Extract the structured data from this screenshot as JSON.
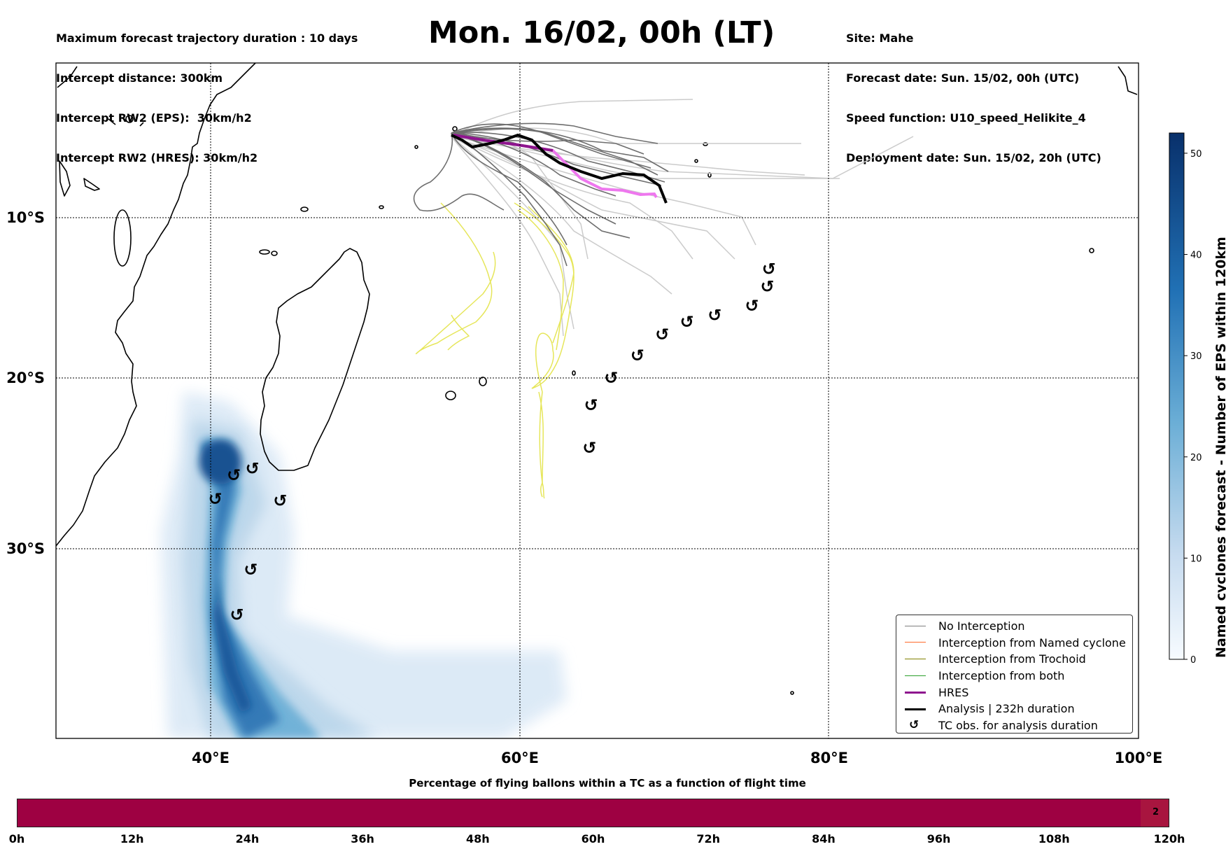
{
  "header_left": [
    "Maximum forecast trajectory duration : 10 days",
    "Intercept distance: 300km",
    "Intercept RW2 (EPS):  30km/h2",
    "Intercept RW2 (HRES): 30km/h2"
  ],
  "title": "Mon. 16/02, 00h (LT)",
  "header_right": [
    "Site: Mahe",
    "Forecast date: Sun. 15/02, 00h (UTC)",
    "Speed function: U10_speed_Helikite_4",
    "Deployment date: Sun. 15/02, 20h (UTC)"
  ],
  "map": {
    "lon_range": [
      30,
      100
    ],
    "lat_range": [
      -43.5,
      0.3
    ],
    "lon_ticks": [
      40,
      60,
      80,
      100
    ],
    "lon_labels": [
      "40°E",
      "60°E",
      "80°E",
      "100°E"
    ],
    "lat_ticks": [
      -10,
      -20,
      -30
    ],
    "lat_labels": [
      "10°S",
      "20°S",
      "30°S"
    ],
    "tc_symbol": "↺",
    "tc_observations": [
      [
        41.5,
        -25.7
      ],
      [
        42.7,
        -25.3
      ],
      [
        40.3,
        -27.1
      ],
      [
        44.5,
        -27.2
      ],
      [
        42.6,
        -31.5
      ],
      [
        41.7,
        -34.7
      ],
      [
        64.5,
        -24.1
      ],
      [
        64.6,
        -21.6
      ],
      [
        65.9,
        -20.0
      ],
      [
        67.6,
        -18.6
      ],
      [
        69.2,
        -17.3
      ],
      [
        70.8,
        -16.5
      ],
      [
        72.6,
        -16.1
      ],
      [
        75.0,
        -15.5
      ],
      [
        76.0,
        -14.3
      ],
      [
        76.1,
        -13.2
      ]
    ],
    "colors": {
      "no_interception": "#6e6e6e",
      "ensemble_light": "#c9c9c9",
      "hres": "#ee77ee",
      "hres_dark": "#8e158e",
      "analysis": "#000000",
      "tc_track": "#e6e65a"
    }
  },
  "legend": {
    "items": [
      {
        "label": "No Interception",
        "color": "#7f7f7f",
        "width": 1
      },
      {
        "label": "Interception from Named cyclone",
        "color": "#ff6a2c",
        "width": 1
      },
      {
        "label": "Interception from Trochoid",
        "color": "#808000",
        "width": 1
      },
      {
        "label": "Interception from both",
        "color": "#2ca02c",
        "width": 1
      },
      {
        "label": "HRES",
        "color": "#8e158e",
        "width": 3
      },
      {
        "label": "Analysis | 232h duration",
        "color": "#000000",
        "width": 3
      },
      {
        "label": "TC obs. for analysis duration",
        "symbol": "↺"
      }
    ]
  },
  "colorbar": {
    "title": "Named cyclones forecast - Number of EPS within 120km",
    "min": 0,
    "max": 52,
    "ticks": [
      "0",
      "10",
      "20",
      "30",
      "40",
      "50"
    ],
    "tick_values": [
      0,
      10,
      20,
      30,
      40,
      50
    ]
  },
  "flight_bar": {
    "title": "Percentage of flying ballons within a TC as a function of flight time",
    "ticks": [
      "0h",
      "12h",
      "24h",
      "36h",
      "48h",
      "60h",
      "72h",
      "84h",
      "96h",
      "108h",
      "120h"
    ],
    "tick_hours": [
      0,
      12,
      24,
      36,
      48,
      60,
      72,
      84,
      96,
      108,
      120
    ],
    "last_cell_value": "2",
    "fill_color": "#9e0142"
  }
}
